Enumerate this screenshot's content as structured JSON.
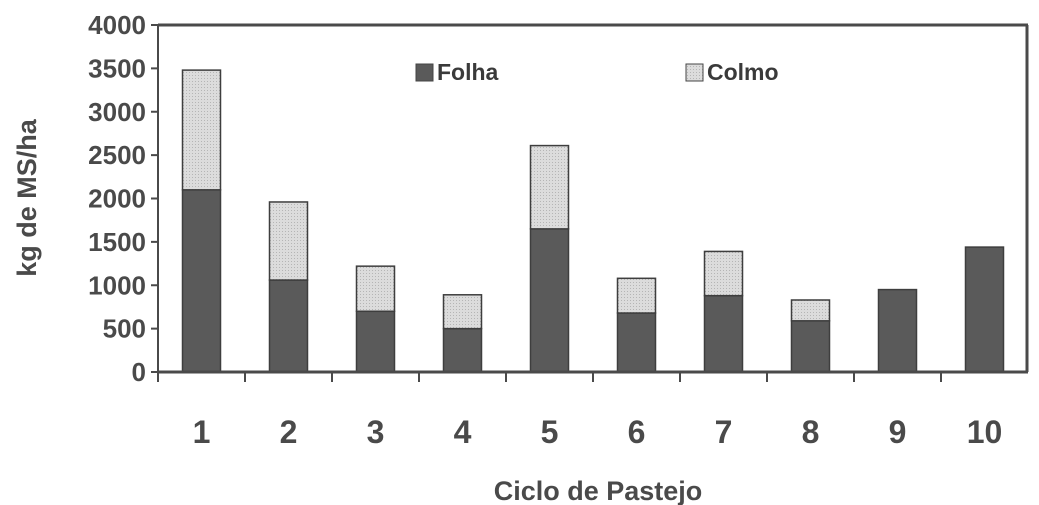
{
  "chart_data": {
    "type": "bar",
    "stacked": true,
    "title": "",
    "xlabel": "Ciclo de Pastejo",
    "ylabel": "kg de MS/ha",
    "ylim": [
      0,
      4000
    ],
    "yticks": [
      "0",
      "500",
      "1000",
      "1500",
      "2000",
      "2500",
      "3000",
      "3500",
      "4000"
    ],
    "categories": [
      "1",
      "2",
      "3",
      "4",
      "5",
      "6",
      "7",
      "8",
      "9",
      "10"
    ],
    "series": [
      {
        "name": "Folha",
        "color": "#5a5a5a",
        "values": [
          2100,
          1060,
          700,
          500,
          1650,
          680,
          880,
          590,
          950,
          1440
        ]
      },
      {
        "name": "Colmo",
        "color": "#d9d9d9",
        "values": [
          1380,
          900,
          520,
          390,
          960,
          400,
          510,
          240,
          0,
          0
        ]
      }
    ],
    "legend_position": "top",
    "grid": false
  }
}
